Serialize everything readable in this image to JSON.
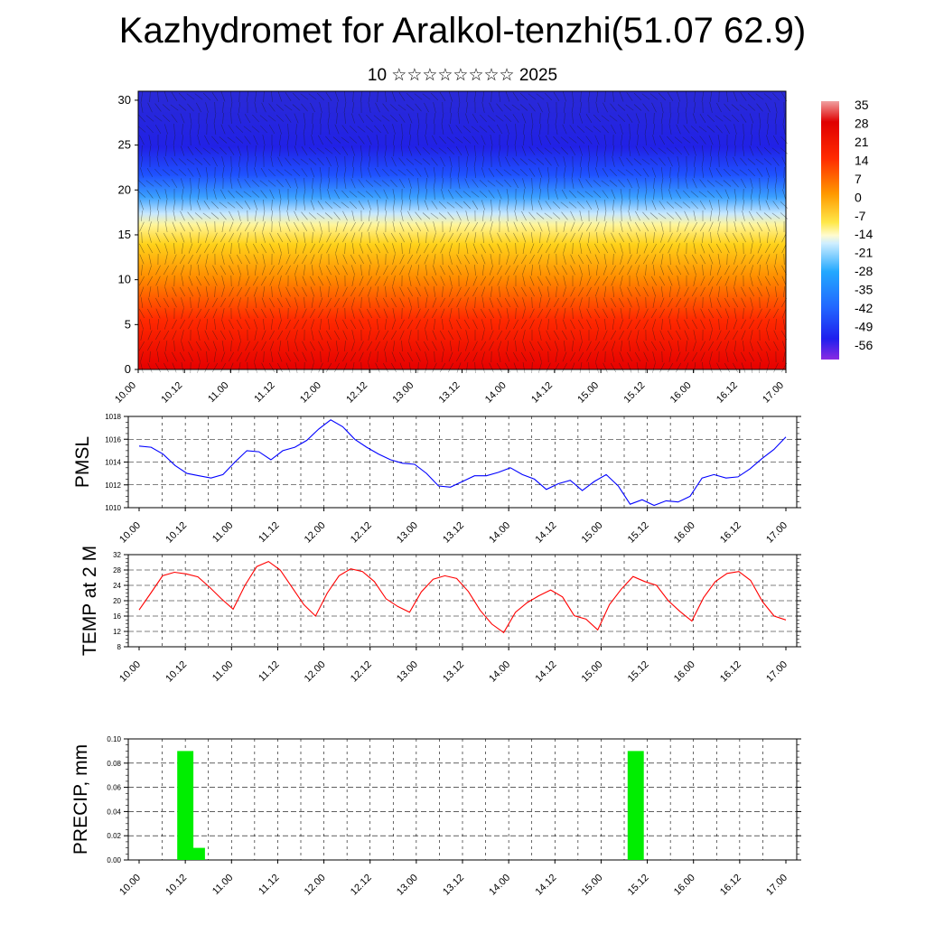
{
  "header": {
    "title": "Kazhydromet for Aralkol-tenzhi(51.07 62.9)",
    "subtitle": "10 ☆☆☆☆☆☆☆☆ 2025"
  },
  "time_labels": [
    "10.00",
    "10.12",
    "11.00",
    "11.12",
    "12.00",
    "12.12",
    "13.00",
    "13.12",
    "14.00",
    "14.12",
    "15.00",
    "15.12",
    "16.00",
    "16.12",
    "17.00"
  ],
  "chart_data": [
    {
      "type": "heatmap",
      "title": "",
      "y_ticks": [
        0,
        5,
        10,
        15,
        20,
        25,
        30
      ],
      "ylim": [
        0,
        31
      ],
      "colorbar_labels": [
        "35",
        "28",
        "21",
        "14",
        "7",
        "0",
        "-7",
        "-14",
        "-21",
        "-28",
        "-35",
        "-42",
        "-49",
        "-56"
      ],
      "colors": {
        "warm": "#ff1a00",
        "mid": "#ffee55",
        "cold": "#2a2ad6",
        "top": "#7a2ee0"
      },
      "overlay": "wind barbs"
    },
    {
      "type": "line",
      "ylabel": "PMSL",
      "ylim": [
        1010,
        1018
      ],
      "y_ticks": [
        "1010",
        "1012",
        "1014",
        "1016",
        "1018"
      ],
      "color": "#0000ff",
      "values": [
        1015.4,
        1015.3,
        1014.7,
        1013.7,
        1013.0,
        1012.8,
        1012.6,
        1012.9,
        1014.0,
        1015.0,
        1014.9,
        1014.2,
        1015.0,
        1015.3,
        1015.9,
        1016.9,
        1017.7,
        1017.1,
        1016.0,
        1015.3,
        1014.7,
        1014.2,
        1013.9,
        1013.8,
        1013.0,
        1011.9,
        1011.8,
        1012.3,
        1012.8,
        1012.8,
        1013.1,
        1013.5,
        1012.9,
        1012.5,
        1011.6,
        1012.1,
        1012.4,
        1011.5,
        1012.3,
        1012.9,
        1011.9,
        1010.3,
        1010.7,
        1010.2,
        1010.6,
        1010.5,
        1011.0,
        1012.6,
        1012.9,
        1012.6,
        1012.7,
        1013.4,
        1014.3,
        1015.1,
        1016.2
      ]
    },
    {
      "type": "line",
      "ylabel": "TEMP at 2 M",
      "ylim": [
        8,
        32
      ],
      "y_ticks": [
        "8",
        "12",
        "16",
        "20",
        "24",
        "28",
        "32"
      ],
      "color": "#ff0000",
      "values": [
        17.6,
        22.0,
        26.5,
        27.4,
        27.0,
        26.2,
        23.5,
        20.5,
        17.8,
        24.0,
        28.9,
        30.2,
        28.0,
        23.5,
        19.0,
        16.0,
        22.0,
        26.5,
        28.3,
        27.6,
        25.0,
        20.5,
        18.5,
        17.0,
        22.3,
        25.6,
        26.5,
        25.8,
        22.4,
        17.5,
        13.9,
        11.7,
        17.0,
        19.5,
        21.3,
        22.8,
        21.0,
        16.1,
        15.2,
        12.4,
        19.0,
        23.0,
        26.3,
        25.0,
        24.0,
        20.0,
        17.2,
        14.7,
        20.8,
        25.0,
        27.1,
        27.6,
        25.3,
        19.8,
        16.0,
        15.0
      ]
    },
    {
      "type": "bar",
      "ylabel": "PRECIP, mm",
      "ylim": [
        0,
        0.1
      ],
      "y_ticks": [
        "0.00",
        "0.02",
        "0.04",
        "0.06",
        "0.08",
        "0.10"
      ],
      "color": "#00ee00",
      "bars": [
        {
          "step": 4,
          "value": 0.09
        },
        {
          "step": 5,
          "value": 0.01
        },
        {
          "step": 43,
          "value": 0.09
        }
      ]
    }
  ]
}
